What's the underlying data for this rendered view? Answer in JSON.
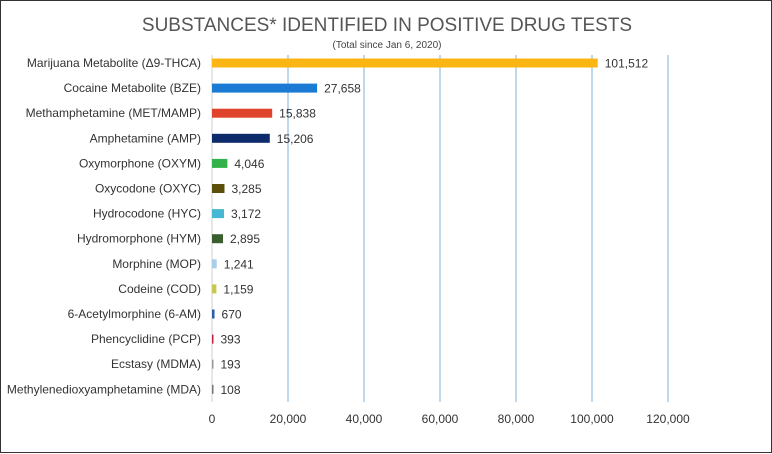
{
  "chart_data": {
    "type": "bar",
    "orientation": "horizontal",
    "title": "SUBSTANCES* IDENTIFIED IN POSITIVE DRUG TESTS",
    "subtitle": "(Total since Jan 6, 2020)",
    "xlim": [
      0,
      120000
    ],
    "xticks": [
      0,
      20000,
      40000,
      60000,
      80000,
      100000,
      120000
    ],
    "xtick_labels": [
      "0",
      "20,000",
      "40,000",
      "60,000",
      "80,000",
      "100,000",
      "120,000"
    ],
    "grid": true,
    "categories": [
      "Marijuana Metabolite (Δ9-THCA)",
      "Cocaine Metabolite (BZE)",
      "Methamphetamine (MET/MAMP)",
      "Amphetamine (AMP)",
      "Oxymorphone (OXYM)",
      "Oxycodone (OXYC)",
      "Hydrocodone (HYC)",
      "Hydromorphone (HYM)",
      "Morphine (MOP)",
      "Codeine (COD)",
      "6-Acetylmorphine (6-AM)",
      "Phencyclidine (PCP)",
      "Ecstasy (MDMA)",
      "Methylenedioxyamphetamine (MDA)"
    ],
    "values": [
      101512,
      27658,
      15838,
      15206,
      4046,
      3285,
      3172,
      2895,
      1241,
      1159,
      670,
      393,
      193,
      108
    ],
    "value_labels": [
      "101,512",
      "27,658",
      "15,838",
      "15,206",
      "4,046",
      "3,285",
      "3,172",
      "2,895",
      "1,241",
      "1,159",
      "670",
      "393",
      "193",
      "108"
    ],
    "colors": [
      "#fcb614",
      "#1a7ad4",
      "#e0432c",
      "#0d2a6b",
      "#33b24a",
      "#5c4f0a",
      "#47b8d1",
      "#3a5e2e",
      "#a9cfe8",
      "#c8c850",
      "#2b5fa8",
      "#c02040",
      "#999999",
      "#777777"
    ]
  }
}
